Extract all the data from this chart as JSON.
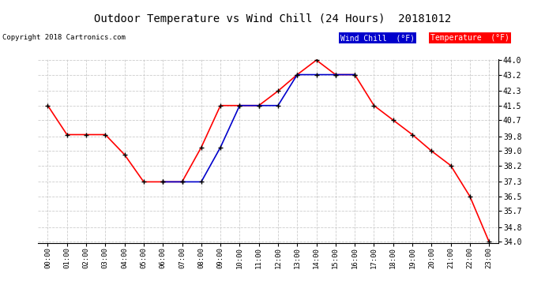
{
  "title": "Outdoor Temperature vs Wind Chill (24 Hours)  20181012",
  "copyright": "Copyright 2018 Cartronics.com",
  "background_color": "#ffffff",
  "grid_color": "#cccccc",
  "x_labels": [
    "00:00",
    "01:00",
    "02:00",
    "03:00",
    "04:00",
    "05:00",
    "06:00",
    "07:00",
    "08:00",
    "09:00",
    "10:00",
    "11:00",
    "12:00",
    "13:00",
    "14:00",
    "15:00",
    "16:00",
    "17:00",
    "18:00",
    "19:00",
    "20:00",
    "21:00",
    "22:00",
    "23:00"
  ],
  "temperature": [
    41.5,
    39.9,
    39.9,
    39.9,
    38.8,
    37.3,
    37.3,
    37.3,
    39.2,
    41.5,
    41.5,
    41.5,
    42.3,
    43.2,
    44.0,
    43.2,
    43.2,
    41.5,
    40.7,
    39.9,
    39.0,
    38.2,
    36.5,
    34.0
  ],
  "wind_chill": [
    null,
    null,
    null,
    null,
    null,
    null,
    37.3,
    37.3,
    37.3,
    39.2,
    41.5,
    41.5,
    41.5,
    43.2,
    43.2,
    43.2,
    43.2,
    null,
    null,
    null,
    null,
    null,
    null,
    null
  ],
  "temp_color": "#ff0000",
  "wind_chill_color": "#0000cc",
  "marker_color": "#000000",
  "ylim_min": 34.0,
  "ylim_max": 44.0,
  "yticks": [
    34.0,
    34.8,
    35.7,
    36.5,
    37.3,
    38.2,
    39.0,
    39.8,
    40.7,
    41.5,
    42.3,
    43.2,
    44.0
  ],
  "legend_wind_chill_bg": "#0000cc",
  "legend_temp_bg": "#ff0000",
  "legend_wind_chill_text": "Wind Chill  (°F)",
  "legend_temp_text": "Temperature  (°F)"
}
